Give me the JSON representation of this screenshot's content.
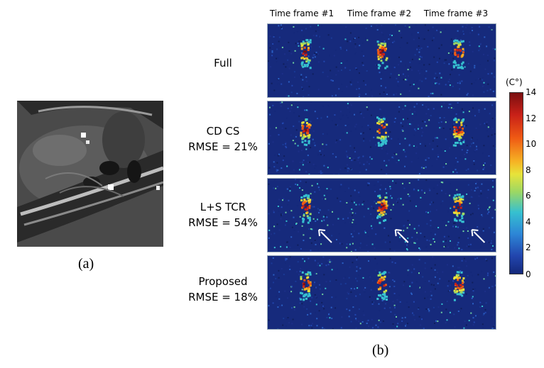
{
  "figure": {
    "panel_a_label": "(a)",
    "panel_b_label": "(b)",
    "column_headers": [
      "Time frame #1",
      "Time frame #2",
      "Time frame #3"
    ],
    "rows": [
      {
        "name": "Full",
        "rmse": ""
      },
      {
        "name": "CD CS",
        "rmse": "RMSE = 21%"
      },
      {
        "name": "L+S TCR",
        "rmse": "RMSE = 54%"
      },
      {
        "name": "Proposed",
        "rmse": "RMSE = 18%"
      }
    ],
    "colorbar": {
      "unit": "(C°)",
      "ticks": [
        "14",
        "12",
        "10",
        "8",
        "6",
        "4",
        "2",
        "0"
      ],
      "colors": [
        "#8b1010",
        "#d62a1a",
        "#f07a16",
        "#f2d12a",
        "#9ad765",
        "#36b6cf",
        "#2a72c6",
        "#182f8b"
      ]
    },
    "arrows_row": "L+S TCR"
  }
}
